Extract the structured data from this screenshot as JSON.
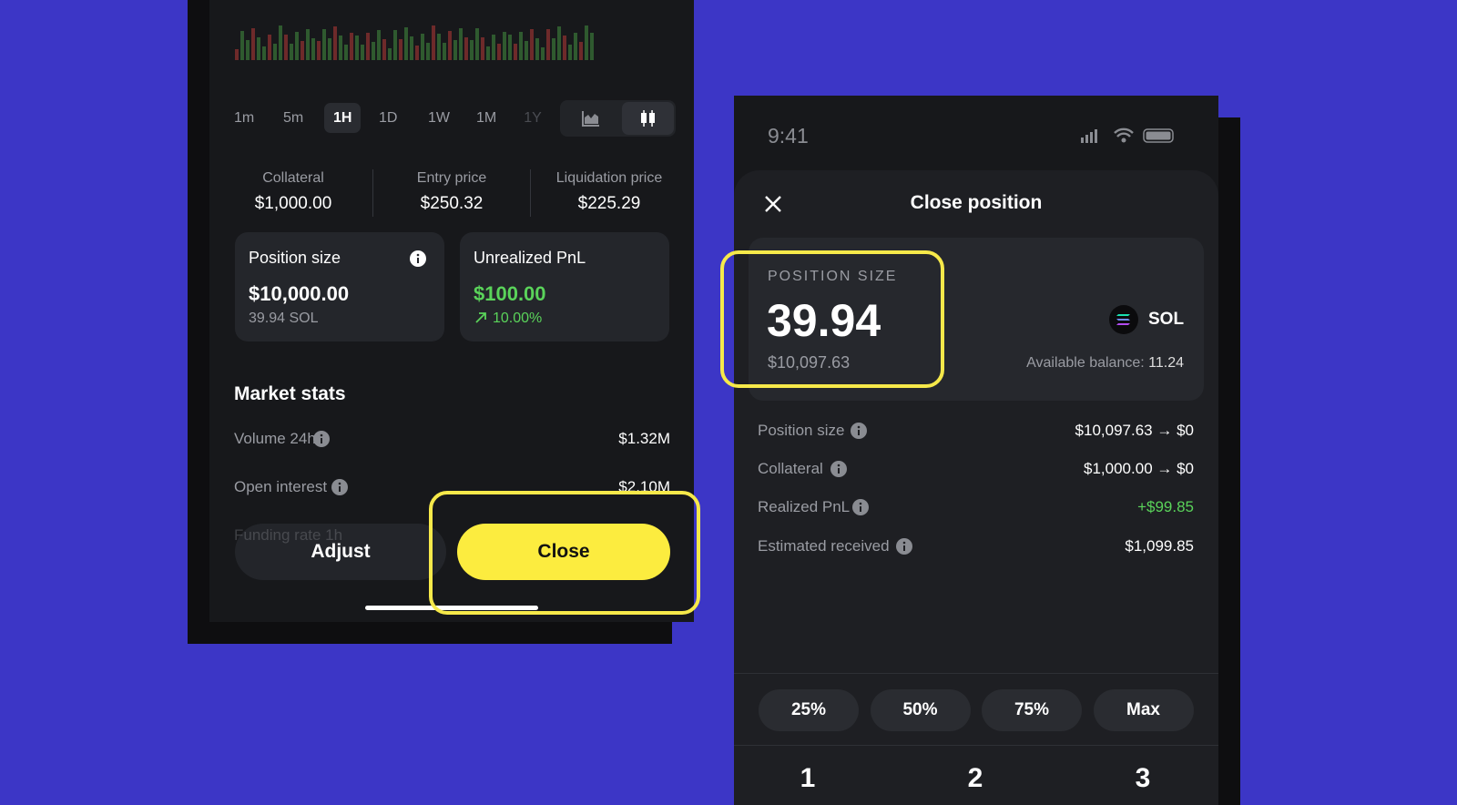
{
  "left_screen": {
    "timeframes": [
      "1m",
      "5m",
      "1H",
      "1D",
      "1W",
      "1M",
      "1Y"
    ],
    "stats": [
      {
        "label": "Collateral",
        "value": "$1,000.00"
      },
      {
        "label": "Entry price",
        "value": "$250.32"
      },
      {
        "label": "Liquidation price",
        "value": "$225.29"
      }
    ],
    "position_card": {
      "title": "Position size",
      "value": "$10,000.00",
      "sub": "39.94 SOL"
    },
    "pnl_card": {
      "title": "Unrealized PnL",
      "value": "$100.00",
      "sub": "10.00%"
    },
    "market_stats": {
      "title": "Market stats",
      "rows": [
        {
          "label": "Volume 24h",
          "value": "$1.32M"
        },
        {
          "label": "Open interest",
          "value": "$2.10M"
        },
        {
          "label": "Funding rate 1h"
        }
      ]
    },
    "buttons": {
      "adjust": "Adjust",
      "close": "Close"
    }
  },
  "right_screen": {
    "time": "9:41",
    "title": "Close position",
    "card": {
      "label": "POSITION SIZE",
      "value": "39.94",
      "usd": "$10,097.63",
      "token": "SOL",
      "balance_label": "Available balance:",
      "balance_value": "11.24"
    },
    "rows": [
      {
        "label": "Position size",
        "value": "$10,097.63 → $0"
      },
      {
        "label": "Collateral",
        "value": "$1,000.00 → $0"
      },
      {
        "label": "Realized PnL",
        "value": "+$99.85"
      },
      {
        "label": "Estimated received",
        "value": "$1,099.85"
      }
    ],
    "percent_buttons": [
      "25%",
      "50%",
      "75%",
      "Max"
    ],
    "keypad": [
      "1",
      "2",
      "3"
    ]
  }
}
